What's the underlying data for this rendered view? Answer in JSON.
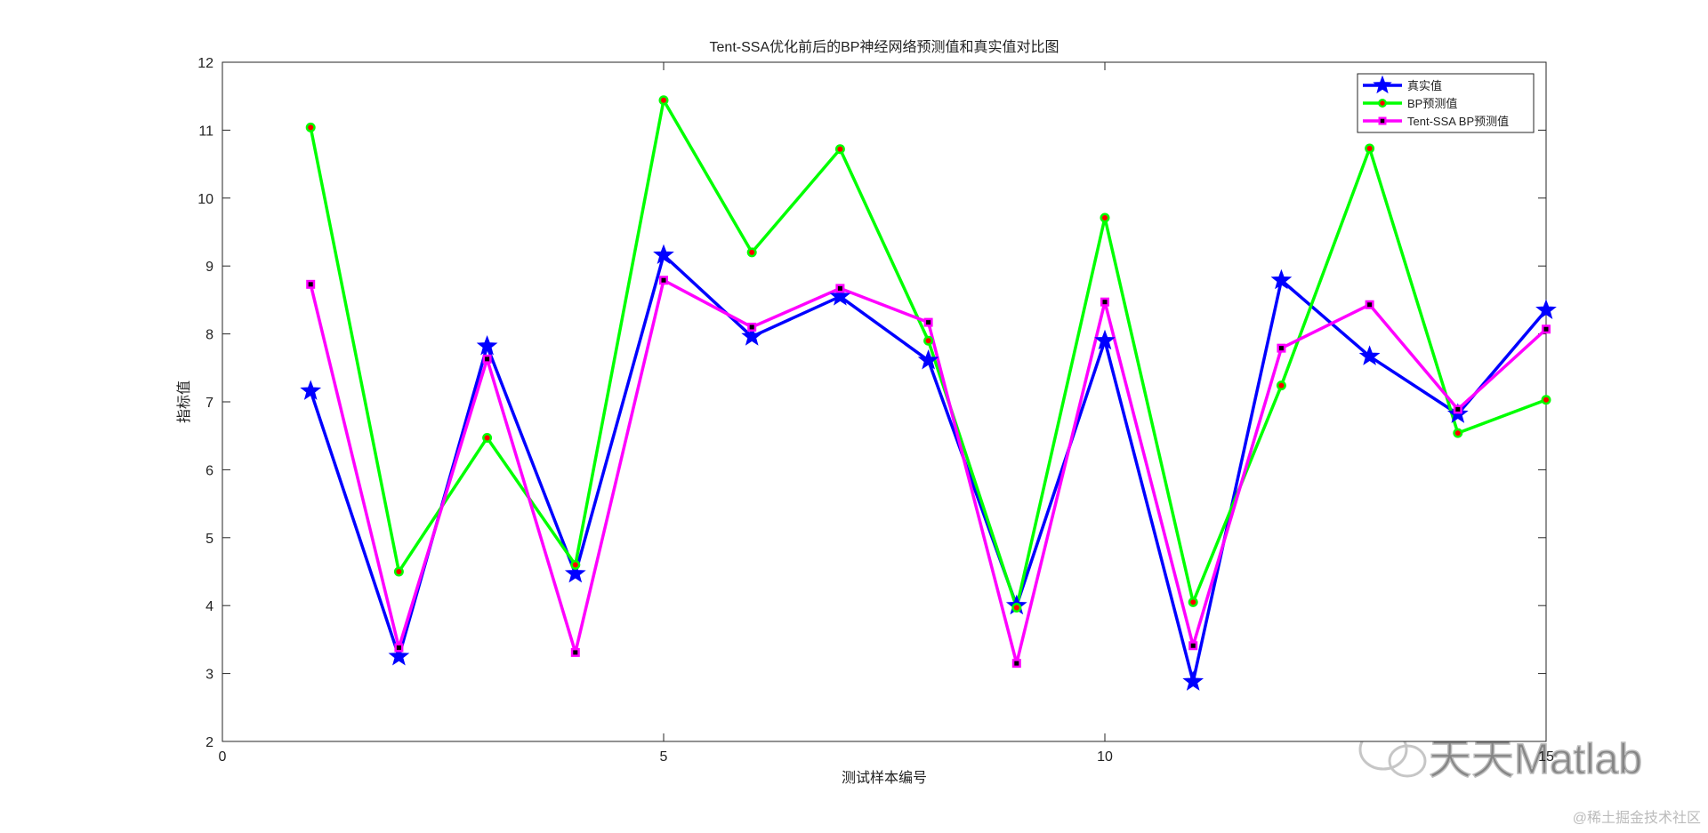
{
  "chart_data": {
    "type": "line",
    "title": "Tent-SSA优化前后的BP神经网络预测值和真实值对比图",
    "x_label": "测试样本编号",
    "y_label": "指标值",
    "x": [
      1,
      2,
      3,
      4,
      5,
      6,
      7,
      8,
      9,
      10,
      11,
      12,
      13,
      14,
      15
    ],
    "series": [
      {
        "name": "真实值",
        "color": "#0000ff",
        "marker": "star",
        "values": [
          7.16,
          3.25,
          7.82,
          4.47,
          9.16,
          7.96,
          8.55,
          7.61,
          4.0,
          7.9,
          2.88,
          8.79,
          7.67,
          6.82,
          8.35
        ]
      },
      {
        "name": "BP预测值",
        "color": "#00ff00",
        "marker": "circle",
        "values": [
          11.04,
          4.5,
          6.47,
          4.6,
          11.44,
          9.2,
          10.72,
          7.9,
          3.97,
          9.71,
          4.05,
          7.24,
          10.73,
          6.54,
          7.03
        ]
      },
      {
        "name": "Tent-SSA BP预测值",
        "color": "#ff00ff",
        "marker": "square",
        "values": [
          8.73,
          3.38,
          7.63,
          3.31,
          8.79,
          8.1,
          8.67,
          8.17,
          3.15,
          8.47,
          3.41,
          7.79,
          8.43,
          6.89,
          8.07
        ]
      }
    ],
    "xlim": [
      0,
      15
    ],
    "xticks": [
      0,
      5,
      10,
      15
    ],
    "ylim": [
      2,
      12
    ],
    "yticks": [
      2,
      3,
      4,
      5,
      6,
      7,
      8,
      9,
      10,
      11,
      12
    ],
    "legend": "top-right",
    "watermark": "天天Matlab",
    "credit": "@稀土掘金技术社区"
  }
}
